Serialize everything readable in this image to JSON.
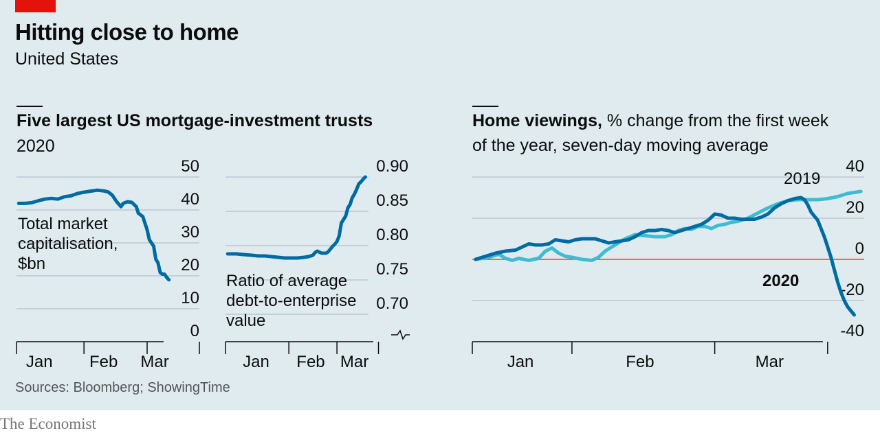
{
  "header": {
    "title": "Hitting close to home",
    "subtitle": "United States",
    "source": "Sources: Bloomberg; ShowingTime",
    "brand": "The Economist"
  },
  "colors": {
    "background": "#e0ebf0",
    "dark_line": "#006ba2",
    "light_line": "#3ebcd2",
    "zero_line": "#db444b",
    "accent": "#e3120b"
  },
  "chart_data": [
    {
      "type": "line",
      "group_title": "Five largest US mortgage-investment trusts",
      "group_subtitle": "2020",
      "label": "Total market capitalisation, $bn",
      "label_lines": [
        "Total market",
        "capitalisation,",
        "$bn"
      ],
      "ylim": [
        0,
        50
      ],
      "yticks": [
        "50",
        "40",
        "30",
        "20",
        "10",
        "0"
      ],
      "xticks": [
        "Jan",
        "Feb",
        "Mar"
      ],
      "series": [
        {
          "values": [
            [
              1,
              42
            ],
            [
              4,
              42
            ],
            [
              7,
              42.2
            ],
            [
              10,
              42.8
            ],
            [
              13,
              43.3
            ],
            [
              16,
              43.5
            ],
            [
              19,
              43.3
            ],
            [
              22,
              44
            ],
            [
              25,
              44.3
            ],
            [
              28,
              45
            ],
            [
              31,
              45.4
            ],
            [
              34,
              45.7
            ],
            [
              37,
              46
            ],
            [
              40,
              45.8
            ],
            [
              42,
              45.5
            ],
            [
              44,
              44.5
            ],
            [
              46,
              42.5
            ],
            [
              48,
              41
            ],
            [
              49,
              42
            ],
            [
              51,
              42.5
            ],
            [
              53,
              42.3
            ],
            [
              55,
              41
            ],
            [
              56,
              39
            ],
            [
              58,
              38
            ],
            [
              59,
              36
            ],
            [
              60,
              34
            ],
            [
              61,
              31
            ],
            [
              62,
              30
            ],
            [
              63,
              29
            ],
            [
              64,
              25
            ],
            [
              65,
              24
            ],
            [
              66,
              21
            ],
            [
              67,
              20.5
            ],
            [
              68,
              20.5
            ],
            [
              69,
              19.5
            ],
            [
              70,
              18.8
            ]
          ]
        }
      ]
    },
    {
      "type": "line",
      "label": "Ratio of average debt-to-enterprise value",
      "label_lines": [
        "Ratio of average",
        "debt-to-enterprise",
        "value"
      ],
      "ylim": [
        0.7,
        0.9
      ],
      "yticks": [
        "0.90",
        "0.85",
        "0.80",
        "0.75",
        "0.70"
      ],
      "axis_break": true,
      "xticks": [
        "Jan",
        "Feb",
        "Mar"
      ],
      "series": [
        {
          "values": [
            [
              1,
              0.788
            ],
            [
              5,
              0.788
            ],
            [
              8,
              0.787
            ],
            [
              12,
              0.786
            ],
            [
              15,
              0.785
            ],
            [
              18,
              0.785
            ],
            [
              21,
              0.784
            ],
            [
              24,
              0.783
            ],
            [
              27,
              0.782
            ],
            [
              30,
              0.782
            ],
            [
              33,
              0.782
            ],
            [
              36,
              0.783
            ],
            [
              38,
              0.784
            ],
            [
              40,
              0.786
            ],
            [
              41,
              0.79
            ],
            [
              42,
              0.792
            ],
            [
              44,
              0.789
            ],
            [
              46,
              0.789
            ],
            [
              47,
              0.791
            ],
            [
              48,
              0.795
            ],
            [
              49,
              0.799
            ],
            [
              50,
              0.802
            ],
            [
              51,
              0.806
            ],
            [
              52,
              0.814
            ],
            [
              53,
              0.833
            ],
            [
              54,
              0.838
            ],
            [
              55,
              0.843
            ],
            [
              56,
              0.855
            ],
            [
              57,
              0.86
            ],
            [
              58,
              0.87
            ],
            [
              59,
              0.875
            ],
            [
              60,
              0.882
            ],
            [
              61,
              0.89
            ],
            [
              62,
              0.893
            ],
            [
              63,
              0.897
            ],
            [
              64,
              0.9
            ]
          ]
        }
      ]
    },
    {
      "type": "line",
      "group_title": "Home viewings,",
      "group_subtitle": "% change from the first week of the year, seven-day moving average",
      "title_lines": [
        "% change from the first week",
        "of the year, seven-day moving average"
      ],
      "ylim": [
        -40,
        40
      ],
      "yticks": [
        "40",
        "20",
        "0",
        "-20",
        "-40"
      ],
      "xticks": [
        "Jan",
        "Feb",
        "Mar"
      ],
      "series": [
        {
          "name": "2019",
          "values": [
            [
              1,
              0
            ],
            [
              5,
              1
            ],
            [
              8,
              2.5
            ],
            [
              10,
              0.5
            ],
            [
              12,
              -0.5
            ],
            [
              14,
              0.5
            ],
            [
              17,
              -0.5
            ],
            [
              20,
              0.5
            ],
            [
              22,
              4
            ],
            [
              24,
              5.5
            ],
            [
              26,
              3
            ],
            [
              28,
              1.5
            ],
            [
              30,
              1
            ],
            [
              33,
              0
            ],
            [
              36,
              -0.5
            ],
            [
              38,
              1
            ],
            [
              40,
              4
            ],
            [
              43,
              7
            ],
            [
              46,
              10
            ],
            [
              49,
              12
            ],
            [
              52,
              11.5
            ],
            [
              55,
              11
            ],
            [
              58,
              11
            ],
            [
              60,
              12
            ],
            [
              62,
              14
            ],
            [
              64,
              15
            ],
            [
              66,
              14.5
            ],
            [
              68,
              16
            ],
            [
              70,
              16
            ],
            [
              72,
              15
            ],
            [
              74,
              16.5
            ],
            [
              76,
              17
            ],
            [
              78,
              18
            ],
            [
              80,
              18.5
            ],
            [
              83,
              20
            ],
            [
              86,
              22.5
            ],
            [
              89,
              25
            ],
            [
              92,
              27
            ],
            [
              95,
              28.5
            ],
            [
              98,
              29
            ],
            [
              101,
              29
            ],
            [
              104,
              29
            ],
            [
              107,
              29.5
            ],
            [
              110,
              30.5
            ],
            [
              113,
              32
            ],
            [
              117,
              33
            ]
          ]
        },
        {
          "name": "2020",
          "values": [
            [
              1,
              0
            ],
            [
              4,
              1.5
            ],
            [
              7,
              3
            ],
            [
              10,
              4
            ],
            [
              13,
              4.5
            ],
            [
              15,
              6
            ],
            [
              17,
              7.5
            ],
            [
              19,
              7
            ],
            [
              21,
              7
            ],
            [
              23,
              7.5
            ],
            [
              25,
              9.5
            ],
            [
              27,
              9
            ],
            [
              29,
              8.5
            ],
            [
              31,
              9.5
            ],
            [
              33,
              10
            ],
            [
              35,
              10
            ],
            [
              37,
              10
            ],
            [
              39,
              9
            ],
            [
              41,
              8
            ],
            [
              43,
              8.5
            ],
            [
              45,
              9
            ],
            [
              47,
              9.5
            ],
            [
              49,
              11
            ],
            [
              51,
              13
            ],
            [
              53,
              14
            ],
            [
              55,
              14
            ],
            [
              57,
              14.5
            ],
            [
              59,
              14
            ],
            [
              61,
              13
            ],
            [
              63,
              14
            ],
            [
              65,
              15
            ],
            [
              67,
              16
            ],
            [
              69,
              17
            ],
            [
              71,
              19
            ],
            [
              73,
              22
            ],
            [
              75,
              21.5
            ],
            [
              77,
              20
            ],
            [
              79,
              20
            ],
            [
              81,
              19.5
            ],
            [
              83,
              19.5
            ],
            [
              85,
              19.5
            ],
            [
              87,
              20.5
            ],
            [
              89,
              22
            ],
            [
              91,
              25
            ],
            [
              93,
              27
            ],
            [
              95,
              28.5
            ],
            [
              97,
              29.5
            ],
            [
              99,
              30
            ],
            [
              100,
              29
            ],
            [
              101,
              26.5
            ],
            [
              102,
              23
            ],
            [
              103,
              21
            ],
            [
              104,
              19
            ],
            [
              105,
              15
            ],
            [
              106,
              11
            ],
            [
              107,
              6
            ],
            [
              108,
              1
            ],
            [
              109,
              -5
            ],
            [
              110,
              -11
            ],
            [
              111,
              -16
            ],
            [
              112,
              -20
            ],
            [
              113,
              -23
            ],
            [
              115,
              -27
            ]
          ]
        }
      ]
    }
  ]
}
